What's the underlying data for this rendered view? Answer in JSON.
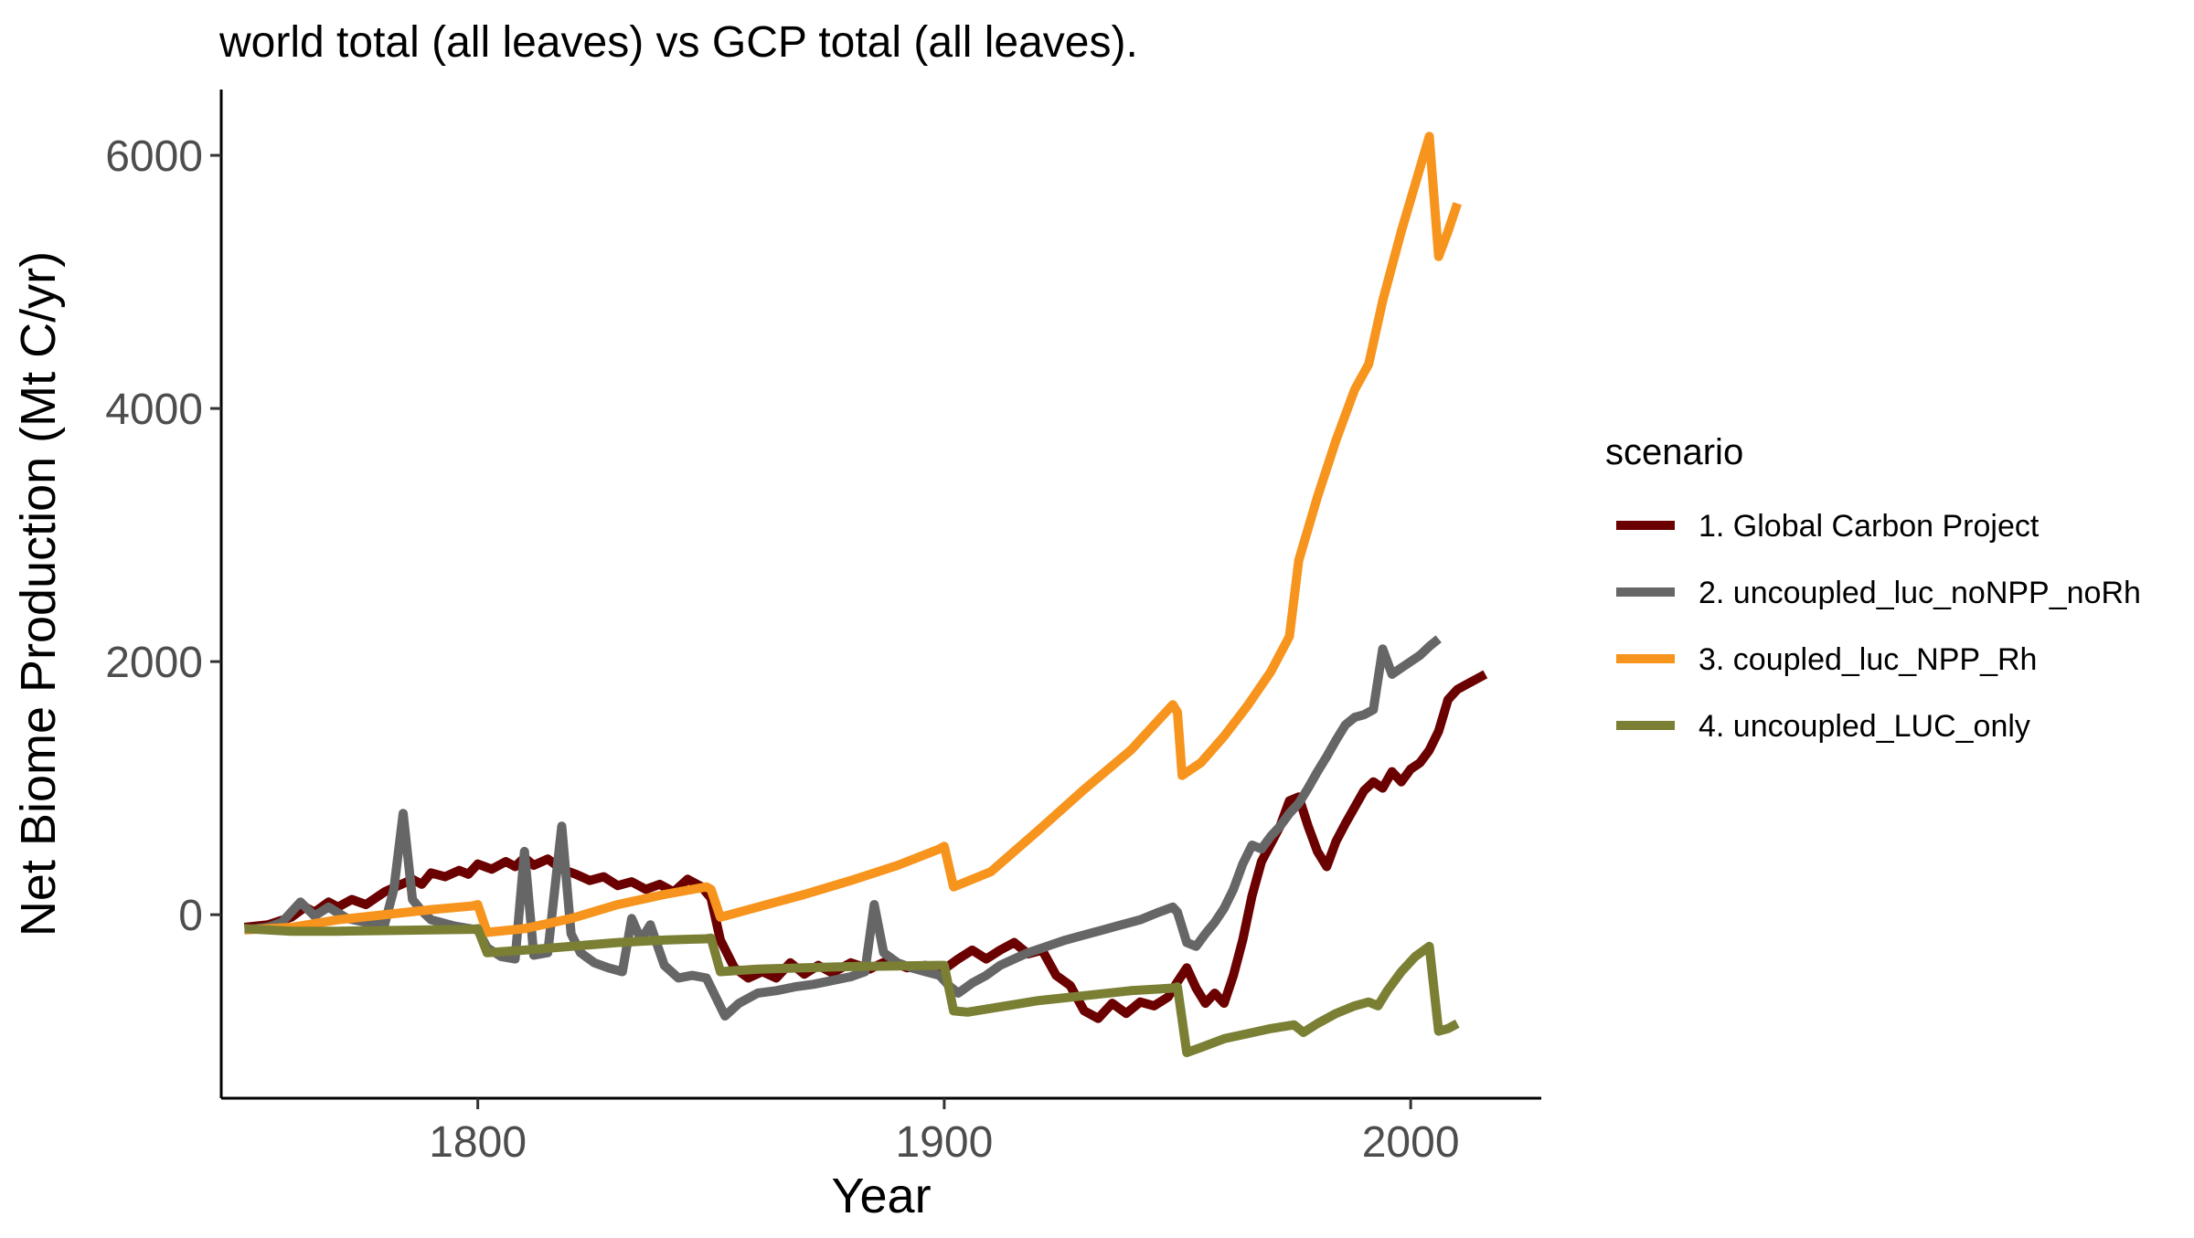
{
  "chart_data": {
    "type": "line",
    "title": "world total (all leaves) vs GCP total (all leaves).",
    "xlabel": "Year",
    "ylabel": "Net Biome Production (Mt C/yr)",
    "xlim": [
      1745,
      2028
    ],
    "ylim": [
      -1450,
      6520
    ],
    "x_ticks": [
      1800,
      1900,
      2000
    ],
    "y_ticks": [
      0,
      2000,
      4000,
      6000
    ],
    "grid": false,
    "legend": {
      "title": "scenario",
      "position": "right"
    },
    "series": [
      {
        "name": "1. Global Carbon Project",
        "color": "#6b0000",
        "points": [
          [
            1750,
            -100
          ],
          [
            1755,
            -80
          ],
          [
            1760,
            -20
          ],
          [
            1763,
            60
          ],
          [
            1765,
            20
          ],
          [
            1768,
            100
          ],
          [
            1770,
            60
          ],
          [
            1773,
            120
          ],
          [
            1776,
            80
          ],
          [
            1780,
            180
          ],
          [
            1783,
            230
          ],
          [
            1786,
            280
          ],
          [
            1788,
            240
          ],
          [
            1790,
            330
          ],
          [
            1793,
            300
          ],
          [
            1796,
            350
          ],
          [
            1798,
            320
          ],
          [
            1800,
            400
          ],
          [
            1803,
            360
          ],
          [
            1806,
            420
          ],
          [
            1808,
            380
          ],
          [
            1810,
            450
          ],
          [
            1812,
            390
          ],
          [
            1815,
            440
          ],
          [
            1818,
            360
          ],
          [
            1821,
            320
          ],
          [
            1824,
            270
          ],
          [
            1827,
            300
          ],
          [
            1830,
            230
          ],
          [
            1833,
            260
          ],
          [
            1836,
            200
          ],
          [
            1839,
            240
          ],
          [
            1842,
            180
          ],
          [
            1845,
            280
          ],
          [
            1848,
            220
          ],
          [
            1850,
            130
          ],
          [
            1852,
            -200
          ],
          [
            1855,
            -420
          ],
          [
            1858,
            -500
          ],
          [
            1861,
            -450
          ],
          [
            1864,
            -500
          ],
          [
            1867,
            -380
          ],
          [
            1870,
            -470
          ],
          [
            1873,
            -400
          ],
          [
            1876,
            -460
          ],
          [
            1880,
            -380
          ],
          [
            1884,
            -430
          ],
          [
            1888,
            -360
          ],
          [
            1892,
            -420
          ],
          [
            1896,
            -400
          ],
          [
            1900,
            -430
          ],
          [
            1903,
            -350
          ],
          [
            1906,
            -280
          ],
          [
            1909,
            -350
          ],
          [
            1912,
            -280
          ],
          [
            1915,
            -220
          ],
          [
            1918,
            -310
          ],
          [
            1921,
            -280
          ],
          [
            1924,
            -480
          ],
          [
            1927,
            -560
          ],
          [
            1930,
            -760
          ],
          [
            1933,
            -820
          ],
          [
            1936,
            -700
          ],
          [
            1939,
            -780
          ],
          [
            1942,
            -690
          ],
          [
            1945,
            -720
          ],
          [
            1948,
            -650
          ],
          [
            1950,
            -530
          ],
          [
            1952,
            -420
          ],
          [
            1954,
            -580
          ],
          [
            1956,
            -700
          ],
          [
            1958,
            -620
          ],
          [
            1960,
            -700
          ],
          [
            1962,
            -480
          ],
          [
            1964,
            -200
          ],
          [
            1966,
            150
          ],
          [
            1968,
            420
          ],
          [
            1970,
            560
          ],
          [
            1972,
            700
          ],
          [
            1974,
            900
          ],
          [
            1976,
            930
          ],
          [
            1978,
            700
          ],
          [
            1980,
            500
          ],
          [
            1982,
            380
          ],
          [
            1984,
            580
          ],
          [
            1986,
            720
          ],
          [
            1988,
            850
          ],
          [
            1990,
            980
          ],
          [
            1992,
            1050
          ],
          [
            1994,
            1000
          ],
          [
            1996,
            1130
          ],
          [
            1998,
            1050
          ],
          [
            2000,
            1150
          ],
          [
            2002,
            1200
          ],
          [
            2004,
            1300
          ],
          [
            2006,
            1450
          ],
          [
            2008,
            1700
          ],
          [
            2010,
            1780
          ],
          [
            2012,
            1820
          ],
          [
            2014,
            1860
          ],
          [
            2016,
            1900
          ]
        ]
      },
      {
        "name": "2. uncoupled_luc_noNPP_noRh",
        "color": "#666666",
        "points": [
          [
            1750,
            -120
          ],
          [
            1755,
            -100
          ],
          [
            1758,
            -60
          ],
          [
            1760,
            20
          ],
          [
            1762,
            100
          ],
          [
            1765,
            -10
          ],
          [
            1768,
            60
          ],
          [
            1772,
            -30
          ],
          [
            1776,
            -60
          ],
          [
            1780,
            -80
          ],
          [
            1782,
            200
          ],
          [
            1784,
            800
          ],
          [
            1786,
            120
          ],
          [
            1788,
            30
          ],
          [
            1790,
            -40
          ],
          [
            1795,
            -90
          ],
          [
            1800,
            -120
          ],
          [
            1802,
            -260
          ],
          [
            1805,
            -330
          ],
          [
            1808,
            -350
          ],
          [
            1810,
            500
          ],
          [
            1812,
            -320
          ],
          [
            1815,
            -300
          ],
          [
            1818,
            700
          ],
          [
            1820,
            -150
          ],
          [
            1822,
            -300
          ],
          [
            1825,
            -380
          ],
          [
            1828,
            -420
          ],
          [
            1831,
            -450
          ],
          [
            1833,
            -30
          ],
          [
            1835,
            -200
          ],
          [
            1837,
            -80
          ],
          [
            1840,
            -400
          ],
          [
            1843,
            -500
          ],
          [
            1846,
            -480
          ],
          [
            1849,
            -500
          ],
          [
            1851,
            -650
          ],
          [
            1853,
            -800
          ],
          [
            1856,
            -700
          ],
          [
            1860,
            -620
          ],
          [
            1864,
            -600
          ],
          [
            1868,
            -570
          ],
          [
            1872,
            -550
          ],
          [
            1876,
            -520
          ],
          [
            1880,
            -490
          ],
          [
            1883,
            -450
          ],
          [
            1885,
            80
          ],
          [
            1887,
            -300
          ],
          [
            1890,
            -380
          ],
          [
            1893,
            -420
          ],
          [
            1896,
            -450
          ],
          [
            1899,
            -480
          ],
          [
            1901,
            -560
          ],
          [
            1903,
            -620
          ],
          [
            1906,
            -540
          ],
          [
            1909,
            -480
          ],
          [
            1912,
            -400
          ],
          [
            1915,
            -350
          ],
          [
            1918,
            -300
          ],
          [
            1922,
            -250
          ],
          [
            1926,
            -200
          ],
          [
            1930,
            -160
          ],
          [
            1934,
            -120
          ],
          [
            1938,
            -80
          ],
          [
            1942,
            -40
          ],
          [
            1946,
            20
          ],
          [
            1949,
            60
          ],
          [
            1950,
            20
          ],
          [
            1952,
            -220
          ],
          [
            1954,
            -250
          ],
          [
            1956,
            -150
          ],
          [
            1958,
            -60
          ],
          [
            1960,
            50
          ],
          [
            1962,
            200
          ],
          [
            1964,
            400
          ],
          [
            1966,
            550
          ],
          [
            1968,
            520
          ],
          [
            1970,
            620
          ],
          [
            1972,
            700
          ],
          [
            1974,
            800
          ],
          [
            1976,
            880
          ],
          [
            1978,
            1000
          ],
          [
            1980,
            1130
          ],
          [
            1982,
            1250
          ],
          [
            1984,
            1380
          ],
          [
            1986,
            1500
          ],
          [
            1988,
            1560
          ],
          [
            1990,
            1580
          ],
          [
            1992,
            1620
          ],
          [
            1994,
            2100
          ],
          [
            1996,
            1900
          ],
          [
            1998,
            1950
          ],
          [
            2000,
            2000
          ],
          [
            2002,
            2050
          ],
          [
            2004,
            2120
          ],
          [
            2006,
            2180
          ]
        ]
      },
      {
        "name": "3. coupled_luc_NPP_Rh",
        "color": "#f7941d",
        "points": [
          [
            1750,
            -120
          ],
          [
            1760,
            -100
          ],
          [
            1770,
            -40
          ],
          [
            1780,
            0
          ],
          [
            1790,
            40
          ],
          [
            1799,
            70
          ],
          [
            1800,
            80
          ],
          [
            1802,
            -140
          ],
          [
            1810,
            -110
          ],
          [
            1820,
            -30
          ],
          [
            1830,
            80
          ],
          [
            1840,
            160
          ],
          [
            1849,
            220
          ],
          [
            1850,
            200
          ],
          [
            1852,
            -20
          ],
          [
            1860,
            60
          ],
          [
            1870,
            160
          ],
          [
            1880,
            270
          ],
          [
            1890,
            390
          ],
          [
            1899,
            520
          ],
          [
            1900,
            540
          ],
          [
            1902,
            220
          ],
          [
            1910,
            340
          ],
          [
            1920,
            660
          ],
          [
            1930,
            990
          ],
          [
            1940,
            1300
          ],
          [
            1949,
            1660
          ],
          [
            1950,
            1600
          ],
          [
            1951,
            1100
          ],
          [
            1955,
            1200
          ],
          [
            1960,
            1410
          ],
          [
            1965,
            1650
          ],
          [
            1970,
            1920
          ],
          [
            1974,
            2200
          ],
          [
            1976,
            2800
          ],
          [
            1980,
            3300
          ],
          [
            1984,
            3750
          ],
          [
            1988,
            4150
          ],
          [
            1991,
            4350
          ],
          [
            1994,
            4850
          ],
          [
            1998,
            5400
          ],
          [
            2002,
            5900
          ],
          [
            2004,
            6150
          ],
          [
            2006,
            5200
          ],
          [
            2008,
            5400
          ],
          [
            2010,
            5620
          ]
        ]
      },
      {
        "name": "4. uncoupled_LUC_only",
        "color": "#7a7f34",
        "points": [
          [
            1750,
            -110
          ],
          [
            1760,
            -130
          ],
          [
            1770,
            -130
          ],
          [
            1780,
            -125
          ],
          [
            1790,
            -120
          ],
          [
            1799,
            -115
          ],
          [
            1800,
            -110
          ],
          [
            1802,
            -300
          ],
          [
            1810,
            -280
          ],
          [
            1820,
            -250
          ],
          [
            1830,
            -220
          ],
          [
            1840,
            -200
          ],
          [
            1849,
            -190
          ],
          [
            1850,
            -185
          ],
          [
            1852,
            -450
          ],
          [
            1860,
            -430
          ],
          [
            1870,
            -420
          ],
          [
            1880,
            -410
          ],
          [
            1890,
            -405
          ],
          [
            1899,
            -400
          ],
          [
            1900,
            -400
          ],
          [
            1902,
            -760
          ],
          [
            1905,
            -770
          ],
          [
            1910,
            -740
          ],
          [
            1920,
            -680
          ],
          [
            1930,
            -640
          ],
          [
            1940,
            -600
          ],
          [
            1949,
            -580
          ],
          [
            1950,
            -570
          ],
          [
            1952,
            -1090
          ],
          [
            1955,
            -1050
          ],
          [
            1960,
            -980
          ],
          [
            1965,
            -940
          ],
          [
            1970,
            -900
          ],
          [
            1975,
            -870
          ],
          [
            1977,
            -930
          ],
          [
            1980,
            -860
          ],
          [
            1984,
            -780
          ],
          [
            1988,
            -720
          ],
          [
            1991,
            -690
          ],
          [
            1993,
            -720
          ],
          [
            1995,
            -600
          ],
          [
            1998,
            -450
          ],
          [
            2001,
            -330
          ],
          [
            2004,
            -250
          ],
          [
            2006,
            -920
          ],
          [
            2008,
            -900
          ],
          [
            2010,
            -860
          ]
        ]
      }
    ]
  }
}
